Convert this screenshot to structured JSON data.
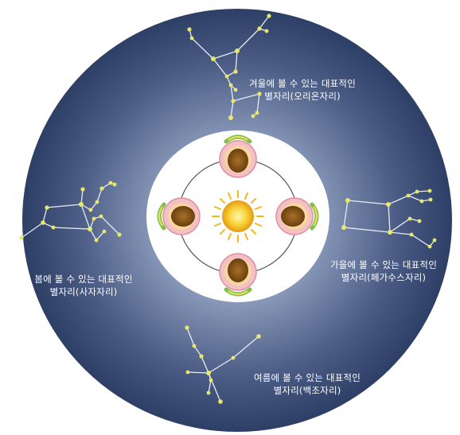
{
  "constellations": {
    "winter": {
      "line1": "겨울에 볼 수 있는 대표적인",
      "line2": "별자리(오리온자리)"
    },
    "autumn": {
      "line1": "가을에 볼 수 있는 대표적인",
      "line2": "별자리(페가수스자리)"
    },
    "spring": {
      "line1": "봄에 볼 수 있는 대표적인",
      "line2": "별자리(사자자리)"
    },
    "summer": {
      "line1": "여름에 볼 수 있는 대표적인",
      "line2": "별자리(백조자리)"
    }
  },
  "colors": {
    "sky_center": "#aab8d0",
    "sky_edge": "#2e3f66",
    "star": "#e8e86a",
    "line": "#e6ecf5",
    "sun": "#f4c21a",
    "orbit": "#444444",
    "earth_ring": "#f0b0b8",
    "earth_core": "#8a5a18"
  }
}
